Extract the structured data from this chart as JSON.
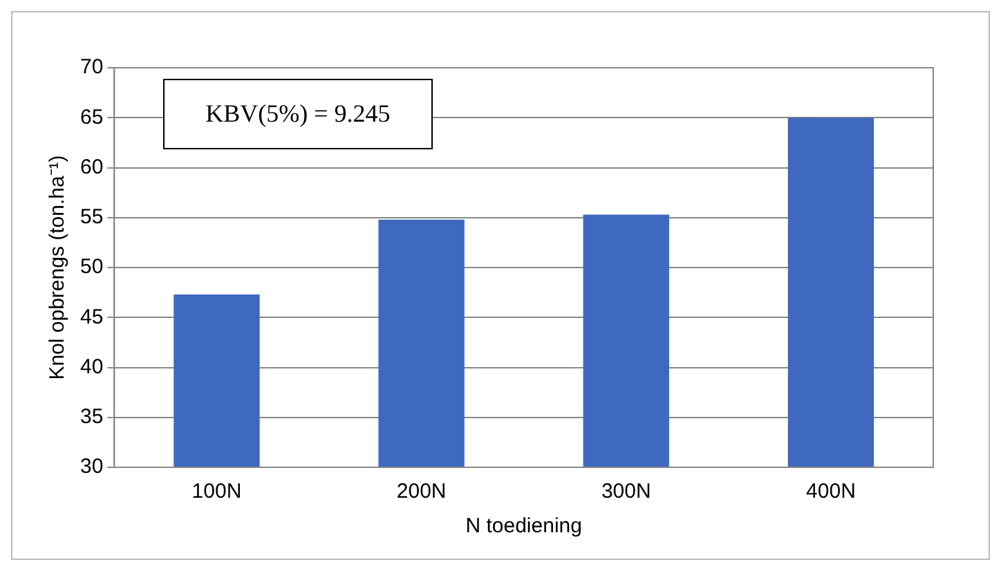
{
  "chart_data": {
    "type": "bar",
    "xlabel": "N toediening",
    "ylabel": "Knol opbrengs (ton.ha⁻¹)",
    "categories": [
      "100N",
      "200N",
      "300N",
      "400N"
    ],
    "values": [
      47.3,
      54.8,
      55.3,
      65.0
    ],
    "color": "#3f69c0",
    "ylim": [
      30,
      70
    ],
    "yticks": [
      30,
      35,
      40,
      45,
      50,
      55,
      60,
      65,
      70
    ],
    "grid": "y",
    "legend": false,
    "annotations": [
      "KBV(5%) = 9.245"
    ]
  }
}
